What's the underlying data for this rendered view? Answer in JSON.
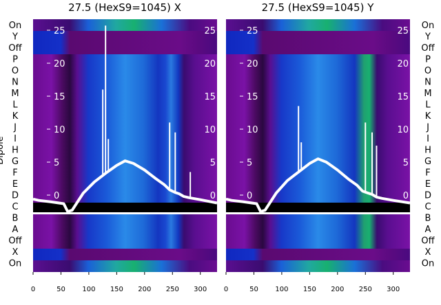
{
  "chart_data": [
    {
      "type": "heatmap",
      "title": "27.5 (HexS9=1045) X",
      "ylabel": "Dipole",
      "x_ticks": [
        0,
        50,
        100,
        150,
        200,
        250,
        300
      ],
      "xlim": [
        0,
        330
      ],
      "right_axis_ticks": [
        0,
        5,
        10,
        15,
        20,
        25
      ],
      "row_labels": [
        "On",
        "Y",
        "Off",
        "P",
        "O",
        "N",
        "M",
        "L",
        "K",
        "J",
        "I",
        "H",
        "G",
        "F",
        "E",
        "D",
        "C",
        "B",
        "A",
        "Off",
        "X",
        "On"
      ],
      "line_series": {
        "name": "",
        "x": [
          0,
          10,
          30,
          55,
          62,
          70,
          90,
          110,
          130,
          150,
          165,
          180,
          200,
          220,
          235,
          245,
          255,
          262,
          270,
          280,
          300,
          330
        ],
        "y": [
          -0.6,
          -0.8,
          -1.0,
          -1.3,
          -2.5,
          -2.3,
          0.3,
          2.0,
          3.3,
          4.5,
          5.2,
          4.8,
          3.8,
          2.5,
          1.6,
          0.8,
          0.4,
          0.2,
          -0.2,
          -0.4,
          -0.7,
          -1.2
        ]
      },
      "spikes": [
        {
          "x": 125,
          "y": 16.0
        },
        {
          "x": 130,
          "y": 25.7
        },
        {
          "x": 135,
          "y": 8.5
        },
        {
          "x": 245,
          "y": 11.0
        },
        {
          "x": 255,
          "y": 9.5
        },
        {
          "x": 282,
          "y": 3.5
        }
      ]
    },
    {
      "type": "heatmap",
      "title": "27.5 (HexS9=1045) Y",
      "x_ticks": [
        0,
        50,
        100,
        150,
        200,
        250,
        300
      ],
      "xlim": [
        0,
        330
      ],
      "right_axis_ticks": [
        0,
        5,
        10,
        15,
        20,
        25
      ],
      "row_labels": [
        "On",
        "Y",
        "Off",
        "P",
        "O",
        "N",
        "M",
        "L",
        "K",
        "J",
        "I",
        "H",
        "G",
        "F",
        "E",
        "D",
        "C",
        "B",
        "A",
        "Off",
        "X",
        "On"
      ],
      "line_series": {
        "name": "",
        "x": [
          0,
          10,
          30,
          55,
          62,
          70,
          90,
          110,
          130,
          150,
          165,
          180,
          200,
          220,
          235,
          245,
          255,
          262,
          270,
          280,
          300,
          330
        ],
        "y": [
          -0.6,
          -0.8,
          -1.0,
          -1.3,
          -2.5,
          -2.3,
          0.3,
          2.2,
          3.5,
          4.8,
          5.5,
          5.0,
          3.8,
          2.4,
          1.5,
          0.6,
          0.3,
          0.1,
          -0.3,
          -0.5,
          -0.8,
          -1.2
        ]
      },
      "spikes": [
        {
          "x": 130,
          "y": 13.5
        },
        {
          "x": 135,
          "y": 8.0
        },
        {
          "x": 250,
          "y": 11.0
        },
        {
          "x": 262,
          "y": 9.5
        },
        {
          "x": 270,
          "y": 7.5
        }
      ]
    }
  ],
  "colors": {
    "background": "#ffffff",
    "line": "#ffffff",
    "text": "#000000",
    "deep_purple": "#5a0a78",
    "purple": "#7a10a0",
    "blue": "#1040d0",
    "light_blue": "#2a8ae8",
    "green": "#18b070",
    "black_band": "#000000"
  }
}
